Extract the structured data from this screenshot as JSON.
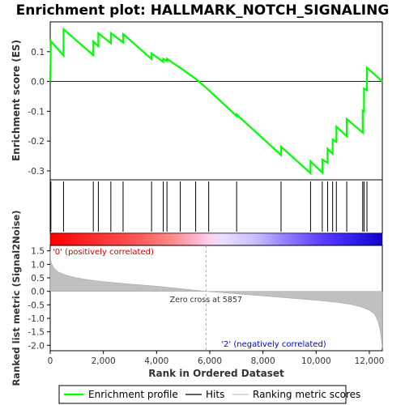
{
  "chart_data": {
    "type": "line",
    "title": "Enrichment plot: HALLMARK_NOTCH_SIGNALING",
    "xlabel": "Rank in Ordered Dataset",
    "xlim": [
      0,
      12488
    ],
    "x_ticks": [
      0,
      2000,
      4000,
      6000,
      8000,
      10000,
      12000
    ],
    "x_tick_labels": [
      "0",
      "2,000",
      "4,000",
      "6,000",
      "8,000",
      "10,000",
      "12,000"
    ],
    "es_panel": {
      "ylabel": "Enrichment score (ES)",
      "ylim": [
        -0.33,
        0.2
      ],
      "y_ticks": [
        0.1,
        0.0,
        -0.1,
        -0.2,
        -0.3
      ],
      "y_tick_labels": [
        "0.1",
        "0.0",
        "-0.1",
        "-0.2",
        "-0.3"
      ],
      "series_name": "Enrichment profile",
      "color": "#00ff00",
      "baseline": 0.0
    },
    "hits": [
      25,
      500,
      1620,
      1810,
      2280,
      2740,
      3810,
      4250,
      4390,
      4890,
      5470,
      5960,
      7010,
      8680,
      9790,
      10230,
      10430,
      10620,
      10760,
      11150,
      11750,
      11800,
      11910
    ],
    "es_points": [
      [
        0,
        0.0
      ],
      [
        25,
        0.135
      ],
      [
        500,
        0.087
      ],
      [
        500,
        0.175
      ],
      [
        1620,
        0.088
      ],
      [
        1620,
        0.134
      ],
      [
        1810,
        0.118
      ],
      [
        1810,
        0.162
      ],
      [
        2280,
        0.128
      ],
      [
        2280,
        0.162
      ],
      [
        2740,
        0.131
      ],
      [
        2740,
        0.159
      ],
      [
        3810,
        0.075
      ],
      [
        3810,
        0.094
      ],
      [
        4250,
        0.066
      ],
      [
        4250,
        0.076
      ],
      [
        4390,
        0.069
      ],
      [
        4390,
        0.076
      ],
      [
        4890,
        0.045
      ],
      [
        4890,
        0.046
      ],
      [
        5470,
        0.009
      ],
      [
        5960,
        -0.029
      ],
      [
        7010,
        -0.116
      ],
      [
        7010,
        -0.111
      ],
      [
        8680,
        -0.247
      ],
      [
        8680,
        -0.219
      ],
      [
        9790,
        -0.308
      ],
      [
        9790,
        -0.268
      ],
      [
        10230,
        -0.306
      ],
      [
        10230,
        -0.262
      ],
      [
        10430,
        -0.273
      ],
      [
        10430,
        -0.226
      ],
      [
        10620,
        -0.243
      ],
      [
        10620,
        -0.195
      ],
      [
        10760,
        -0.203
      ],
      [
        10760,
        -0.152
      ],
      [
        11150,
        -0.184
      ],
      [
        11150,
        -0.126
      ],
      [
        11750,
        -0.172
      ],
      [
        11750,
        -0.098
      ],
      [
        11800,
        -0.101
      ],
      [
        11800,
        -0.024
      ],
      [
        11910,
        -0.03
      ],
      [
        11910,
        0.046
      ],
      [
        12488,
        0.0
      ]
    ],
    "ranked_panel": {
      "ylabel": "Ranked list metric (Signal2Noise)",
      "ylim": [
        -2.2,
        1.7
      ],
      "y_ticks": [
        1.5,
        1.0,
        0.5,
        0.0,
        -0.5,
        -1.0,
        -1.5,
        -2.0
      ],
      "y_tick_labels": [
        "1.5",
        "1.0",
        "0.5",
        "0.0",
        "-0.5",
        "-1.0",
        "-1.5",
        "-2.0"
      ],
      "series_name": "Ranking metric scores",
      "metric_points": [
        [
          0,
          1.5
        ],
        [
          20,
          1.15
        ],
        [
          60,
          1.0
        ],
        [
          150,
          0.85
        ],
        [
          300,
          0.72
        ],
        [
          600,
          0.6
        ],
        [
          1000,
          0.5
        ],
        [
          1500,
          0.42
        ],
        [
          2000,
          0.36
        ],
        [
          3000,
          0.27
        ],
        [
          4000,
          0.19
        ],
        [
          5000,
          0.09
        ],
        [
          5857,
          0.0
        ],
        [
          7000,
          -0.09
        ],
        [
          8000,
          -0.17
        ],
        [
          9000,
          -0.25
        ],
        [
          10000,
          -0.33
        ],
        [
          10800,
          -0.41
        ],
        [
          11300,
          -0.48
        ],
        [
          11700,
          -0.58
        ],
        [
          12000,
          -0.7
        ],
        [
          12200,
          -0.85
        ],
        [
          12320,
          -1.1
        ],
        [
          12400,
          -1.4
        ],
        [
          12450,
          -1.75
        ],
        [
          12488,
          -2.1
        ]
      ],
      "positive_label": "'0' (positively correlated)",
      "negative_label": "'2' (negatively correlated)",
      "zero_cross_label": "Zero cross at 5857",
      "zero_cross": 5857
    },
    "legend": [
      {
        "label": "Enrichment profile",
        "color": "#00ff00"
      },
      {
        "label": "Hits",
        "color": "#000000"
      },
      {
        "label": "Ranking metric scores",
        "color": "#c0c0c0"
      }
    ]
  }
}
